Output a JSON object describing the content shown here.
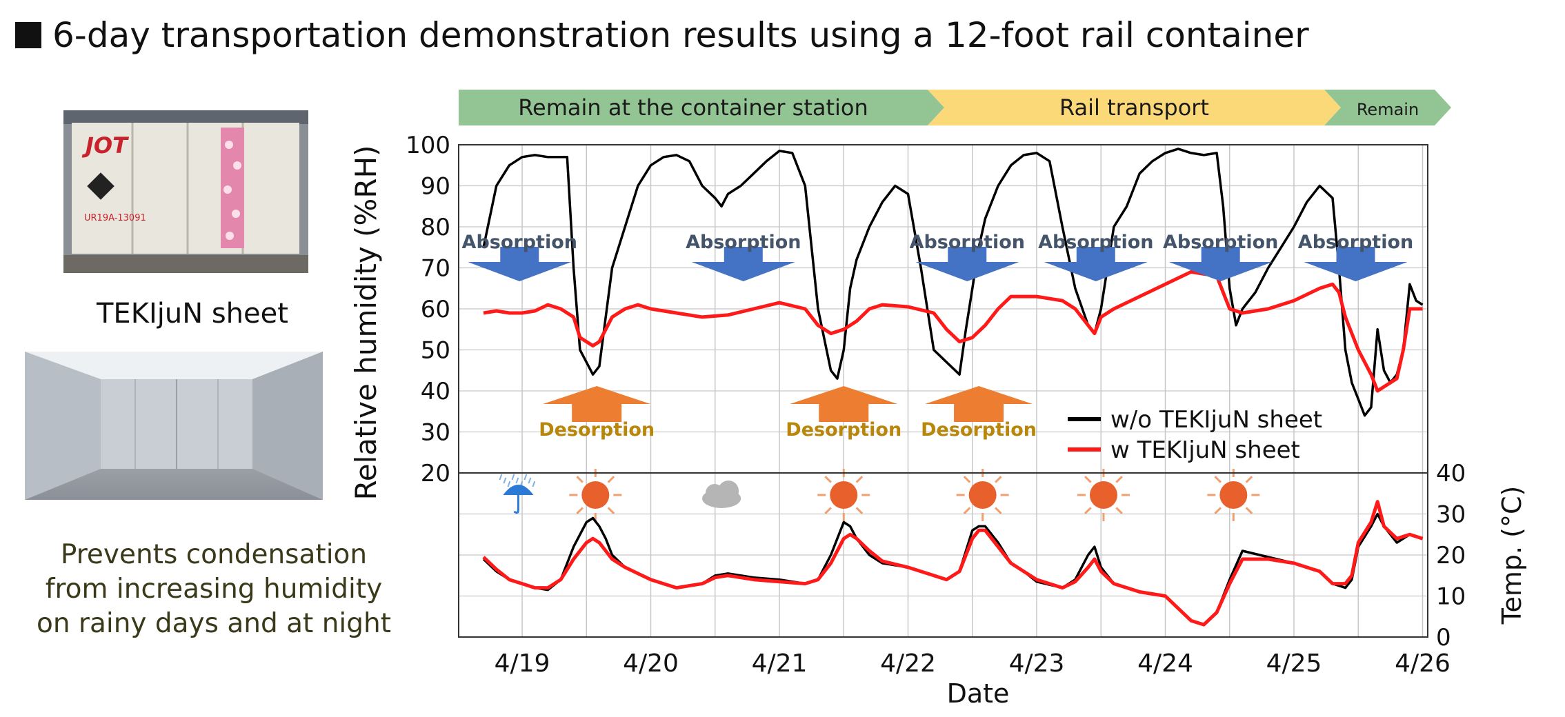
{
  "title": "6-day transportation demonstration results using a 12-foot rail container",
  "photos": {
    "container_logo": "JOT",
    "container_id": "UR19A-13091"
  },
  "sheet_label": "TEKIjuN sheet",
  "caption": "Prevents condensation from increasing humidity on rainy days and at night",
  "colors": {
    "without": "#000000",
    "with": "#ff1a1a",
    "absorption": "#4472c4",
    "desorption": "#ed7d31",
    "phase_station": "#93c594",
    "phase_rail": "#fcd978"
  },
  "chart_data": {
    "type": "line",
    "phases": [
      {
        "label": "Remain at the container station",
        "start": 0,
        "end": 3.55,
        "color": "#93c594"
      },
      {
        "label": "Rail transport",
        "start": 3.55,
        "end": 7.0,
        "color": "#fcd978"
      },
      {
        "label": "Remain",
        "start": 7.0,
        "end": 7.6,
        "color": "#93c594"
      }
    ],
    "x_labels": [
      "4/19",
      "4/20",
      "4/21",
      "4/22",
      "4/23",
      "4/24",
      "4/25",
      "4/26"
    ],
    "xlabel": "Date",
    "ylabel_rh": "Relative humidity (%RH)",
    "ylabel_temp": "Temp. (°C)",
    "rh_ticks": [
      "100",
      "90",
      "80",
      "70",
      "60",
      "50",
      "40",
      "30",
      "20"
    ],
    "temp_ticks": [
      "40",
      "30",
      "20",
      "10",
      "0"
    ],
    "ylim_rh": [
      20,
      100
    ],
    "ylim_temp": [
      0,
      40
    ],
    "legend": [
      "w/o TEKIjuN sheet",
      "w TEKIjuN sheet"
    ],
    "arrows_absorption": [
      "Absorption",
      "Absorption",
      "Absorption",
      "Absorption",
      "Absorption",
      "Absorption"
    ],
    "arrows_desorption": [
      "Desorption",
      "Desorption",
      "Desorption"
    ],
    "absorption_days": [
      -0.02,
      1.72,
      3.46,
      4.46,
      5.43,
      6.48
    ],
    "desorption_days": [
      0.58,
      2.5,
      3.55
    ],
    "weather": [
      {
        "icon": "umbrella-rain",
        "day": -0.03
      },
      {
        "icon": "sun",
        "day": 0.57
      },
      {
        "icon": "cloud",
        "day": 1.55
      },
      {
        "icon": "sun",
        "day": 2.5
      },
      {
        "icon": "sun",
        "day": 3.58
      },
      {
        "icon": "sun",
        "day": 4.52
      },
      {
        "icon": "sun",
        "day": 5.53
      }
    ],
    "series": [
      {
        "name": "w/o TEKIjuN sheet",
        "metric": "RH",
        "color": "#000000",
        "x": [
          -0.3,
          -0.2,
          -0.1,
          0,
          0.1,
          0.2,
          0.3,
          0.35,
          0.4,
          0.45,
          0.5,
          0.55,
          0.6,
          0.65,
          0.7,
          0.8,
          0.9,
          1.0,
          1.1,
          1.2,
          1.3,
          1.4,
          1.5,
          1.55,
          1.6,
          1.7,
          1.8,
          1.9,
          2.0,
          2.1,
          2.2,
          2.3,
          2.4,
          2.45,
          2.5,
          2.55,
          2.6,
          2.7,
          2.8,
          2.9,
          3.0,
          3.1,
          3.2,
          3.3,
          3.4,
          3.45,
          3.5,
          3.55,
          3.6,
          3.7,
          3.8,
          3.9,
          4.0,
          4.1,
          4.2,
          4.3,
          4.4,
          4.45,
          4.5,
          4.55,
          4.6,
          4.7,
          4.8,
          4.9,
          5.0,
          5.1,
          5.2,
          5.3,
          5.4,
          5.45,
          5.5,
          5.55,
          5.6,
          5.7,
          5.8,
          5.9,
          6.0,
          6.1,
          6.2,
          6.3,
          6.35,
          6.4,
          6.45,
          6.5,
          6.55,
          6.6,
          6.65,
          6.7,
          6.75,
          6.8,
          6.85,
          6.9,
          6.95,
          7.0
        ],
        "y": [
          75,
          90,
          95,
          97,
          97.5,
          97,
          97,
          97,
          70,
          50,
          47,
          44,
          46,
          58,
          70,
          80,
          90,
          95,
          97,
          97.5,
          96,
          90,
          87,
          85,
          88,
          90,
          93,
          96,
          98.5,
          98,
          90,
          60,
          45,
          43,
          50,
          65,
          72,
          80,
          86,
          90,
          88,
          70,
          50,
          47,
          44,
          55,
          65,
          75,
          82,
          90,
          95,
          97.5,
          98,
          96,
          80,
          65,
          56,
          54,
          60,
          70,
          80,
          85,
          93,
          96,
          98,
          99,
          98,
          97.5,
          98,
          85,
          65,
          56,
          60,
          64,
          70,
          75,
          80,
          86,
          90,
          87,
          70,
          50,
          42,
          38,
          34,
          36,
          55,
          45,
          42,
          44,
          50,
          66,
          62,
          61
        ]
      },
      {
        "name": "w TEKIjuN sheet",
        "metric": "RH",
        "color": "#ff1a1a",
        "x": [
          -0.3,
          -0.2,
          -0.1,
          0,
          0.1,
          0.2,
          0.3,
          0.4,
          0.45,
          0.5,
          0.55,
          0.6,
          0.65,
          0.7,
          0.8,
          0.9,
          1.0,
          1.2,
          1.4,
          1.6,
          1.8,
          2.0,
          2.2,
          2.3,
          2.4,
          2.5,
          2.6,
          2.7,
          2.8,
          3.0,
          3.2,
          3.3,
          3.4,
          3.5,
          3.6,
          3.7,
          3.8,
          4.0,
          4.2,
          4.3,
          4.4,
          4.45,
          4.5,
          4.6,
          4.8,
          5.0,
          5.2,
          5.4,
          5.45,
          5.5,
          5.6,
          5.8,
          6.0,
          6.2,
          6.3,
          6.35,
          6.4,
          6.5,
          6.6,
          6.65,
          6.7,
          6.8,
          6.85,
          6.9,
          7.0
        ],
        "y": [
          59,
          59.5,
          59,
          59,
          59.5,
          61,
          60,
          58,
          53,
          52,
          51,
          52,
          55,
          58,
          60,
          61,
          60,
          59,
          58,
          58.5,
          60,
          61.5,
          60,
          56,
          54,
          55,
          57,
          60,
          61,
          60.5,
          59,
          55,
          52,
          53,
          56,
          60,
          63,
          63,
          62,
          60,
          56,
          54,
          58,
          60,
          63,
          66,
          69,
          68,
          64,
          60,
          59,
          60,
          62,
          65,
          66,
          64,
          58,
          50,
          44,
          40,
          41,
          43,
          50,
          60,
          60
        ]
      },
      {
        "name": "w/o TEKIjuN sheet",
        "metric": "Temp",
        "color": "#000000",
        "x": [
          -0.3,
          -0.2,
          -0.1,
          0,
          0.1,
          0.2,
          0.3,
          0.4,
          0.5,
          0.55,
          0.6,
          0.65,
          0.7,
          0.8,
          1.0,
          1.2,
          1.4,
          1.5,
          1.6,
          1.8,
          2.0,
          2.2,
          2.3,
          2.4,
          2.5,
          2.55,
          2.6,
          2.7,
          2.8,
          3.0,
          3.2,
          3.3,
          3.4,
          3.5,
          3.55,
          3.6,
          3.7,
          3.8,
          3.9,
          4.0,
          4.2,
          4.3,
          4.4,
          4.45,
          4.5,
          4.6,
          4.8,
          5.0,
          5.1,
          5.2,
          5.3,
          5.4,
          5.5,
          5.6,
          5.8,
          6.0,
          6.2,
          6.3,
          6.4,
          6.45,
          6.5,
          6.6,
          6.65,
          6.7,
          6.8,
          6.9,
          7.0
        ],
        "y": [
          19,
          16,
          14,
          13,
          12,
          11.5,
          14,
          22,
          28,
          29,
          27,
          24,
          20,
          17,
          14,
          12,
          13,
          15,
          15.5,
          14.5,
          14,
          13,
          14,
          20,
          28,
          27,
          24,
          20,
          18,
          17,
          15,
          14,
          16,
          26,
          27,
          27,
          23,
          18,
          16,
          13.5,
          12,
          14,
          20,
          22,
          17,
          13,
          11,
          10,
          7,
          4,
          3,
          6,
          14,
          21,
          19.5,
          18,
          16,
          13,
          12,
          14,
          22,
          27,
          30,
          27,
          23,
          25,
          24
        ]
      },
      {
        "name": "w TEKIjuN sheet",
        "metric": "Temp",
        "color": "#ff1a1a",
        "x": [
          -0.3,
          -0.2,
          -0.1,
          0,
          0.1,
          0.2,
          0.3,
          0.4,
          0.5,
          0.55,
          0.6,
          0.65,
          0.7,
          0.8,
          1.0,
          1.2,
          1.4,
          1.5,
          1.6,
          1.8,
          2.0,
          2.2,
          2.3,
          2.4,
          2.5,
          2.55,
          2.6,
          2.7,
          2.8,
          3.0,
          3.2,
          3.3,
          3.4,
          3.5,
          3.55,
          3.6,
          3.7,
          3.8,
          3.9,
          4.0,
          4.2,
          4.3,
          4.4,
          4.45,
          4.5,
          4.6,
          4.8,
          5.0,
          5.1,
          5.2,
          5.3,
          5.4,
          5.5,
          5.6,
          5.8,
          6.0,
          6.2,
          6.3,
          6.4,
          6.45,
          6.5,
          6.6,
          6.65,
          6.7,
          6.8,
          6.9,
          7.0
        ],
        "y": [
          19.5,
          16.5,
          14,
          13,
          12,
          12,
          14,
          19,
          23,
          24,
          23,
          21,
          19,
          17,
          14,
          12,
          13,
          14.5,
          15,
          14,
          13.5,
          13,
          14,
          18,
          24,
          25,
          24,
          21,
          18.5,
          17,
          15,
          14,
          16,
          24,
          26,
          26,
          22,
          18,
          16,
          14,
          12,
          13.5,
          17,
          19,
          16,
          13,
          11,
          10,
          7,
          4,
          3,
          6,
          13,
          19,
          19,
          18,
          16,
          13,
          13,
          15,
          23,
          28,
          33,
          27,
          24,
          25,
          24
        ]
      }
    ]
  }
}
